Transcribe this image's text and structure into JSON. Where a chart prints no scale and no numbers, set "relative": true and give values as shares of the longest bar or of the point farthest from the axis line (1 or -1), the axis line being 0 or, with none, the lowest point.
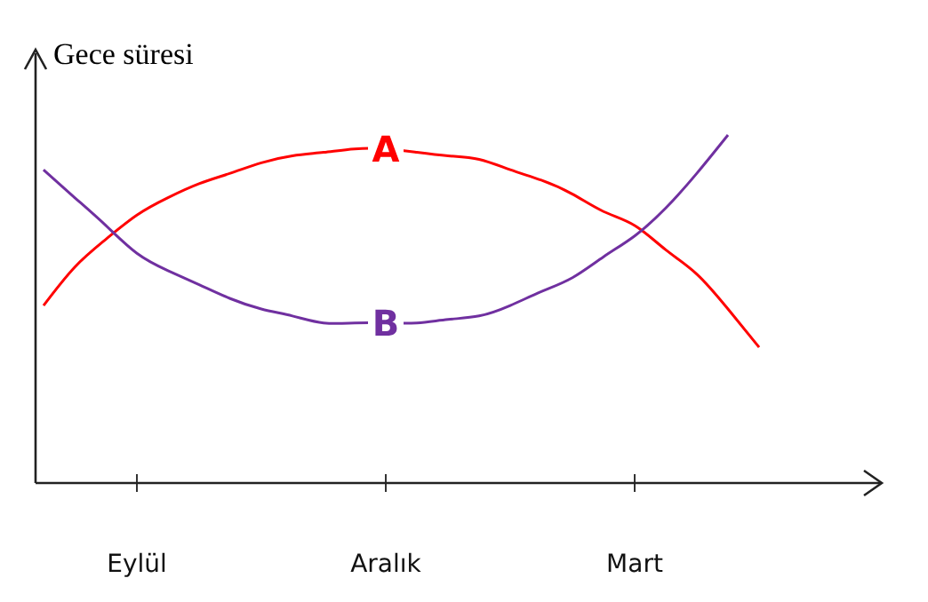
{
  "chart_data": {
    "type": "line",
    "ylabel": "Gece süresi",
    "relative": true,
    "legend": false,
    "marker": "none",
    "line_style": "solid",
    "categories": [
      null,
      null,
      null,
      "Eylül",
      null,
      null,
      null,
      null,
      null,
      null,
      null,
      "Aralık",
      null,
      null,
      null,
      null,
      null,
      null,
      null,
      "Mart",
      null,
      null,
      null,
      null
    ],
    "series": [
      {
        "name": "A",
        "color": "#ff0000",
        "values": [
          0.51,
          0.62,
          0.7,
          0.77,
          0.82,
          0.86,
          0.89,
          0.92,
          0.94,
          0.95,
          0.96,
          0.96,
          0.95,
          0.94,
          0.93,
          0.9,
          0.87,
          0.83,
          0.78,
          0.74,
          0.67,
          0.6,
          0.5,
          0.39
        ]
      },
      {
        "name": "B",
        "color": "#7030a0",
        "values": [
          0.9,
          0.82,
          0.74,
          0.66,
          0.61,
          0.57,
          0.53,
          0.5,
          0.48,
          0.46,
          0.46,
          0.46,
          0.46,
          0.47,
          0.48,
          0.51,
          0.55,
          0.59,
          0.65,
          0.71,
          0.79,
          0.89,
          1,
          null
        ]
      }
    ]
  }
}
